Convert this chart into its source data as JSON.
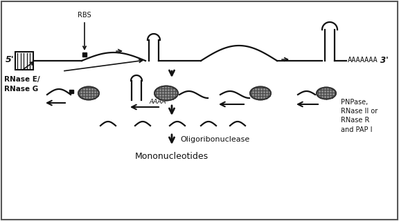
{
  "background_color": "#ffffff",
  "border_color": "#555555",
  "line_color": "#111111",
  "text_color": "#111111",
  "labels": {
    "rbs": "RBS",
    "five_prime": "5'",
    "three_prime": "3'",
    "aaaaaaa": "AAAAAAA",
    "rnase_label": "RNase E/\nRNase G",
    "pnpase_label": "PNPase,\nRNase II or\nRNase R\nand PAP I",
    "oligo_label": "Oligoribonuclease",
    "mono_label": "Mononucleotides",
    "aaaa_label": "AAAA"
  },
  "figsize": [
    5.76,
    3.2
  ],
  "dpi": 100
}
